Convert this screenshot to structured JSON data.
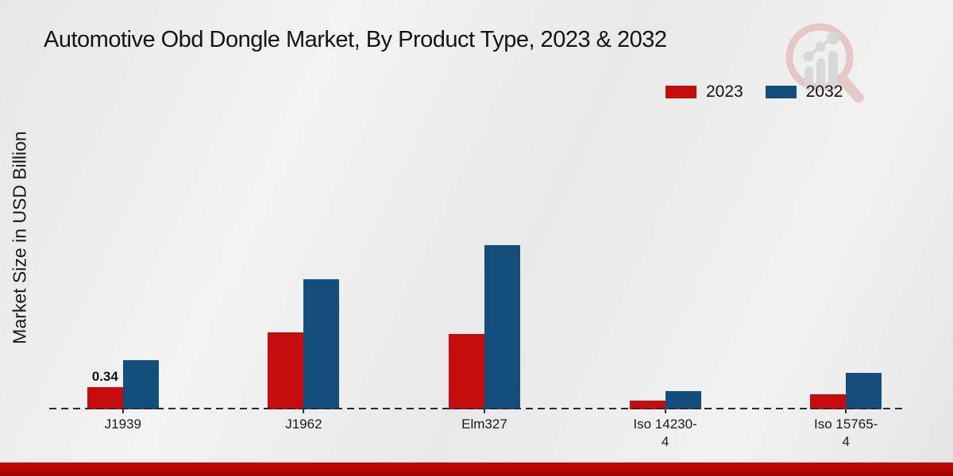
{
  "title": "Automotive Obd Dongle Market, By Product Type, 2023 & 2032",
  "y_axis_label": "Market Size in USD Billion",
  "legend": {
    "items": [
      {
        "label": "2023",
        "color": "#c60d0d"
      },
      {
        "label": "2032",
        "color": "#134e7d"
      }
    ],
    "position": "top-right"
  },
  "chart_data": {
    "type": "bar",
    "categories": [
      "J1939",
      "J1962",
      "Elm327",
      "Iso 14230-4",
      "Iso 15765-4"
    ],
    "series": [
      {
        "name": "2023",
        "color": "#c60d0d",
        "values": [
          0.34,
          1.17,
          1.15,
          0.13,
          0.23
        ]
      },
      {
        "name": "2032",
        "color": "#134e7d",
        "values": [
          0.75,
          1.97,
          2.49,
          0.28,
          0.55
        ]
      }
    ],
    "value_labels": [
      {
        "series": "2023",
        "category": "J1939",
        "text": "0.34"
      }
    ],
    "title": "Automotive Obd Dongle Market, By Product Type, 2023 & 2032",
    "xlabel": "",
    "ylabel": "Market Size in USD Billion",
    "ylim": [
      0,
      2.65
    ],
    "grid": false,
    "baseline_style": "dashed",
    "legend_position": "top-right"
  },
  "watermark_icon": "magnifier-growth-chart-logo",
  "colors": {
    "background": "#ececec",
    "footer_stripe": "#b30505",
    "axis": "#2b2b2b",
    "text": "#1a1a1a"
  }
}
